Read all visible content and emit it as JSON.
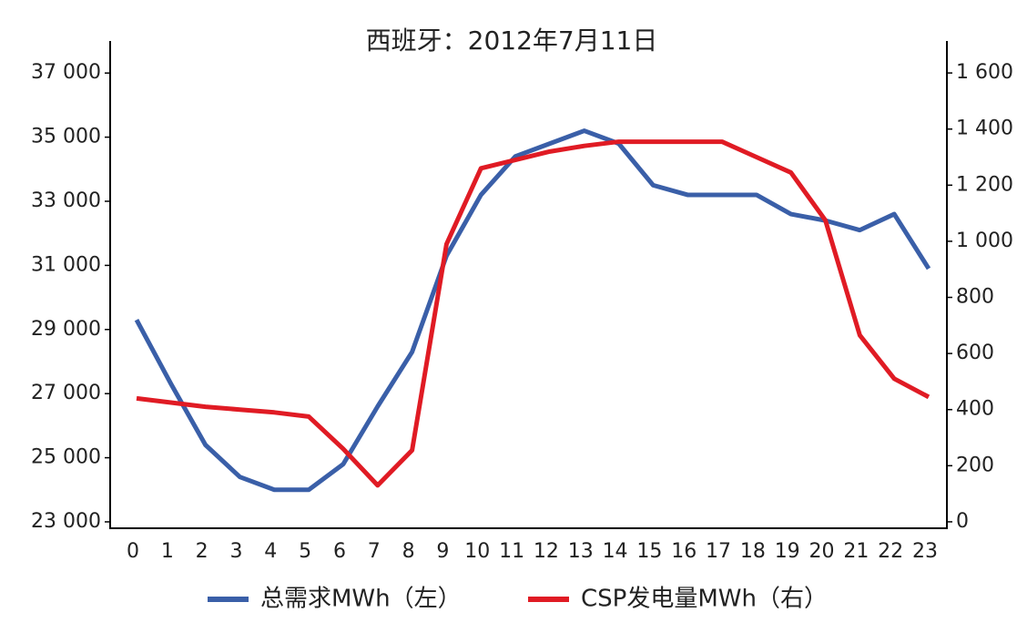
{
  "chart_data": {
    "type": "line",
    "title": "西班牙：2012年7月11日",
    "categories": [
      "0",
      "1",
      "2",
      "3",
      "4",
      "5",
      "6",
      "7",
      "8",
      "9",
      "10",
      "11",
      "12",
      "13",
      "14",
      "15",
      "16",
      "17",
      "18",
      "19",
      "20",
      "21",
      "22",
      "23"
    ],
    "series": [
      {
        "name": "总需求MWh（左）",
        "color": "#3a5fa8",
        "values": [
          29300,
          27300,
          25400,
          24400,
          24000,
          24000,
          24800,
          26600,
          28300,
          31300,
          33200,
          34400,
          34800,
          35200,
          34800,
          33500,
          33200,
          33200,
          33200,
          32600,
          32400,
          32100,
          32600,
          30900
        ]
      },
      {
        "name": "CSP发电量MWh（右）",
        "color": "#e01b24",
        "axis": "y2",
        "values": [
          440,
          425,
          410,
          400,
          390,
          375,
          260,
          130,
          255,
          990,
          1260,
          1290,
          1320,
          1340,
          1355,
          1355,
          1355,
          1355,
          1300,
          1245,
          1075,
          665,
          510,
          445
        ]
      }
    ],
    "ylim": [
      22800,
      38000
    ],
    "yticks": [
      {
        "value": 23000,
        "label": "23 000"
      },
      {
        "value": 25000,
        "label": "25 000"
      },
      {
        "value": 27000,
        "label": "27 000"
      },
      {
        "value": 29000,
        "label": "29 000"
      },
      {
        "value": 31000,
        "label": "31 000"
      },
      {
        "value": 33000,
        "label": "33 000"
      },
      {
        "value": 35000,
        "label": "35 000"
      },
      {
        "value": 37000,
        "label": "37 000"
      }
    ],
    "y2lim": [
      -23,
      1714
    ],
    "y2ticks": [
      0,
      200,
      400,
      600,
      800,
      {
        "value": 1000,
        "label": "1 000"
      },
      {
        "value": 1200,
        "label": "1 200"
      },
      {
        "value": 1400,
        "label": "1 400"
      },
      {
        "value": 1600,
        "label": "1 600"
      }
    ],
    "legend": "bottom"
  }
}
